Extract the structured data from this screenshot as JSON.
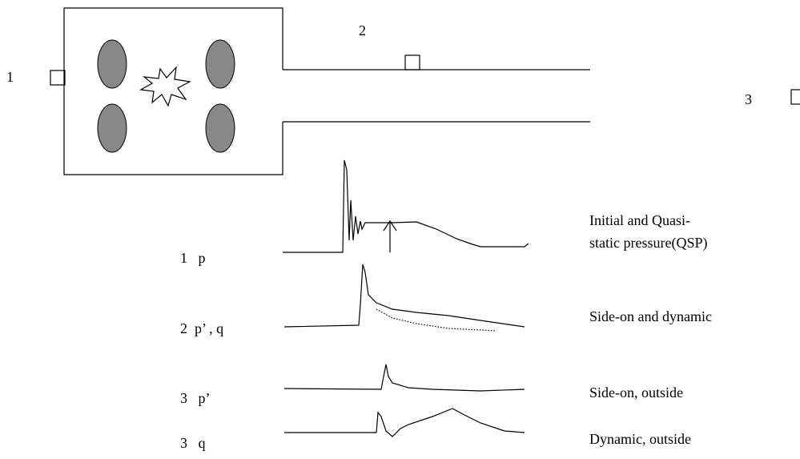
{
  "gauges": {
    "gauge_1": "1",
    "gauge_2": "2",
    "gauge_3": "3"
  },
  "traces": [
    {
      "label": "1   p",
      "description": [
        "Initial and Quasi-",
        "static pressure(QSP)"
      ]
    },
    {
      "label": "2  p’ , q",
      "description": [
        "Side-on and dynamic"
      ]
    },
    {
      "label": "3   p’",
      "description": [
        "Side-on, outside"
      ]
    },
    {
      "label": "3   q",
      "description": [
        "Dynamic, outside"
      ]
    }
  ]
}
